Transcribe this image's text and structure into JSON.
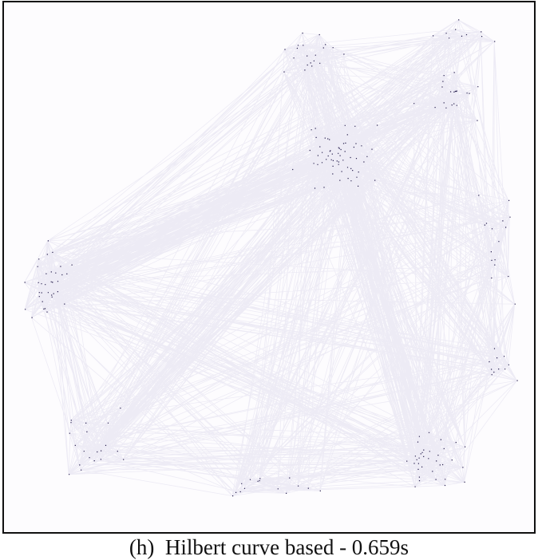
{
  "caption": {
    "label": "(h)",
    "text": "Hilbert curve based - 0.659s"
  }
}
